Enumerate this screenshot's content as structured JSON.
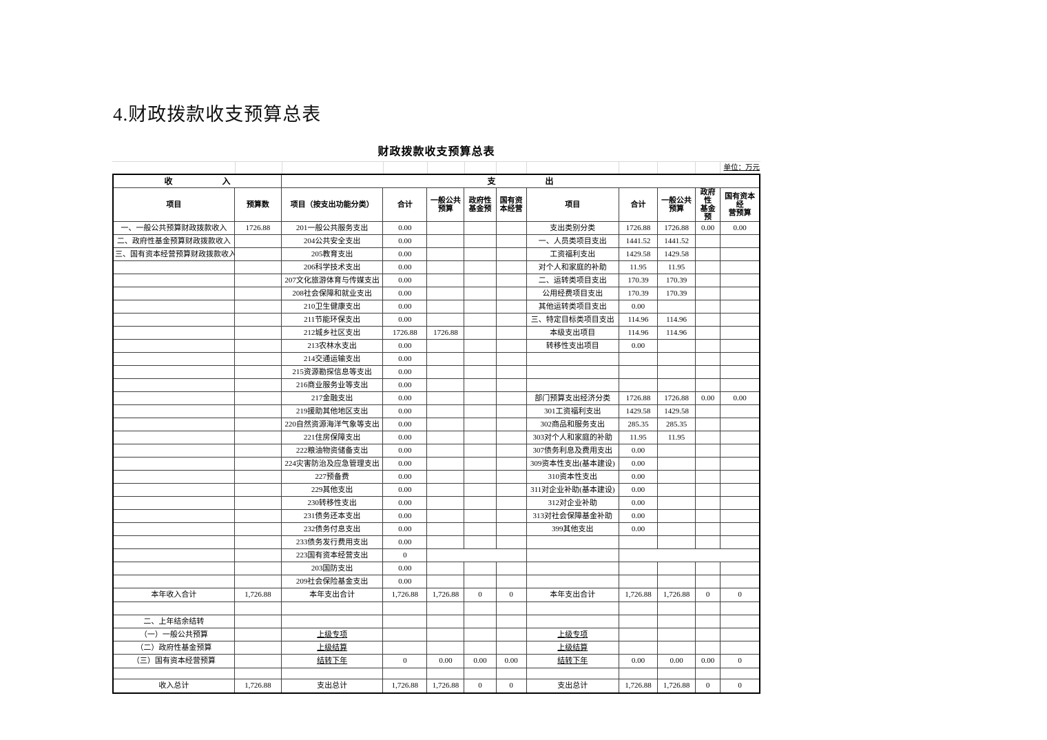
{
  "page": {
    "heading": "4.财政拨款收支预算总表"
  },
  "table": {
    "title": "财政拨款收支预算总表",
    "unit_note": "单位：万元",
    "section_headers": {
      "income": "收　　　　　　入",
      "expenditure": "支　　　　　　出"
    },
    "column_headers": [
      "项目",
      "预算数",
      "项目（按支出功能分类）",
      "合计",
      "一般公共\n预算",
      "政府性\n基金预",
      "国有资\n本经营",
      "项目",
      "合计",
      "一般公共\n预算",
      "政府性\n基金预",
      "国有资本经\n营预算"
    ],
    "rows": [
      [
        "一、一般公共预算财政拨款收入",
        "1726.88",
        "201一般公共服务支出",
        "0.00",
        "",
        "",
        "",
        "支出类别分类",
        "1726.88",
        "1726.88",
        "0.00",
        "0.00"
      ],
      [
        "二、政府性基金预算财政拨款收入",
        "",
        "204公共安全支出",
        "0.00",
        "",
        "",
        "",
        "一、人员类项目支出",
        "1441.52",
        "1441.52",
        "",
        ""
      ],
      [
        "三、国有资本经营预算财政拨款收入",
        "",
        "205教育支出",
        "0.00",
        "",
        "",
        "",
        {
          "t": "工资福利支出",
          "i": 1
        },
        "1429.58",
        "1429.58",
        "",
        ""
      ],
      [
        "",
        "",
        "206科学技术支出",
        "0.00",
        "",
        "",
        "",
        {
          "t": "对个人和家庭的补助",
          "i": 1
        },
        "11.95",
        "11.95",
        "",
        ""
      ],
      [
        "",
        "",
        "207文化旅游体育与传媒支出",
        "0.00",
        "",
        "",
        "",
        "二、运转类项目支出",
        "170.39",
        "170.39",
        "",
        ""
      ],
      [
        "",
        "",
        "208社会保障和就业支出",
        "0.00",
        "",
        "",
        "",
        {
          "t": "公用经费项目支出",
          "i": 1
        },
        "170.39",
        "170.39",
        "",
        ""
      ],
      [
        "",
        "",
        "210卫生健康支出",
        "0.00",
        "",
        "",
        "",
        {
          "t": "其他运转类项目支出",
          "i": 1
        },
        "0.00",
        "",
        "",
        ""
      ],
      [
        "",
        "",
        "211节能环保支出",
        "0.00",
        "",
        "",
        "",
        "三、特定目标类项目支出",
        "114.96",
        "114.96",
        "",
        ""
      ],
      [
        "",
        "",
        "212城乡社区支出",
        "1726.88",
        "1726.88",
        "",
        "",
        {
          "t": "本级支出项目",
          "i": 1
        },
        "114.96",
        "114.96",
        "",
        ""
      ],
      [
        "",
        "",
        "213农林水支出",
        "0.00",
        "",
        "",
        "",
        {
          "t": "转移性支出项目",
          "i": 1
        },
        "0.00",
        "",
        "",
        ""
      ],
      [
        "",
        "",
        "214交通运输支出",
        "0.00",
        "",
        "",
        "",
        "",
        "",
        "",
        "",
        ""
      ],
      [
        "",
        "",
        "215资源勘探信息等支出",
        "0.00",
        "",
        "",
        "",
        "",
        "",
        "",
        "",
        ""
      ],
      [
        "",
        "",
        "216商业服务业等支出",
        "0.00",
        "",
        "",
        "",
        "",
        "",
        "",
        "",
        ""
      ],
      [
        "",
        "",
        "217金融支出",
        "0.00",
        "",
        "",
        "",
        "部门预算支出经济分类",
        "1726.88",
        "1726.88",
        "0.00",
        "0.00"
      ],
      [
        "",
        "",
        "219援助其他地区支出",
        "0.00",
        "",
        "",
        "",
        "301工资福利支出",
        "1429.58",
        "1429.58",
        "",
        ""
      ],
      [
        "",
        "",
        "220自然资源海洋气象等支出",
        "0.00",
        "",
        "",
        "",
        "302商品和服务支出",
        "285.35",
        "285.35",
        "",
        ""
      ],
      [
        "",
        "",
        "221住房保障支出",
        "0.00",
        "",
        "",
        "",
        "303对个人和家庭的补助",
        "11.95",
        "11.95",
        "",
        ""
      ],
      [
        "",
        "",
        "222粮油物资储备支出",
        "0.00",
        "",
        "",
        "",
        "307债务利息及费用支出",
        "0.00",
        "",
        "",
        ""
      ],
      [
        "",
        "",
        "224灾害防治及应急管理支出",
        "0.00",
        "",
        "",
        "",
        "309资本性支出(基本建设)",
        "0.00",
        "",
        "",
        ""
      ],
      [
        "",
        "",
        "227预备费",
        "0.00",
        "",
        "",
        "",
        "310资本性支出",
        "0.00",
        "",
        "",
        ""
      ],
      [
        "",
        "",
        "229其他支出",
        "0.00",
        "",
        "",
        "",
        "311对企业补助(基本建设)",
        "0.00",
        "",
        "",
        ""
      ],
      [
        "",
        "",
        "230转移性支出",
        "0.00",
        "",
        "",
        "",
        "312对企业补助",
        "0.00",
        "",
        "",
        ""
      ],
      [
        "",
        "",
        "231债务还本支出",
        "0.00",
        "",
        "",
        "",
        "313对社会保障基金补助",
        "0.00",
        "",
        "",
        ""
      ],
      [
        "",
        "",
        "232债务付息支出",
        "0.00",
        "",
        "",
        "",
        "399其他支出",
        "0.00",
        "",
        "",
        ""
      ],
      [
        "",
        "",
        "233债务发行费用支出",
        "0.00",
        "",
        "",
        "",
        "",
        "",
        "",
        "",
        ""
      ],
      [
        "",
        "",
        "223国有资本经营支出",
        "0",
        {
          "t": "",
          "span": 3
        },
        "",
        {
          "t": "",
          "span": 4
        }
      ],
      [
        "",
        "",
        "203国防支出",
        "0.00",
        "",
        "",
        "",
        "",
        "",
        "",
        "",
        ""
      ],
      [
        "",
        "",
        "209社会保险基金支出",
        "0.00",
        "",
        "",
        "",
        "",
        "",
        "",
        "",
        ""
      ],
      [
        "本年收入合计",
        {
          "t": "1,726.88",
          "a": "r"
        },
        "本年支出合计",
        {
          "t": "1,726.88",
          "a": "r"
        },
        {
          "t": "1,726.88",
          "a": "r"
        },
        {
          "t": "0",
          "a": "r"
        },
        {
          "t": "0",
          "a": "r"
        },
        "本年支出合计",
        {
          "t": "1,726.88",
          "a": "r"
        },
        {
          "t": "1,726.88",
          "a": "r"
        },
        {
          "t": "0",
          "a": "r"
        },
        {
          "t": "0",
          "a": "r"
        }
      ],
      [
        "",
        "",
        "",
        "",
        "",
        "",
        "",
        "",
        "",
        "",
        "",
        ""
      ],
      [
        "二、上年结余结转",
        "",
        "",
        "",
        "",
        "",
        "",
        "",
        "",
        "",
        "",
        ""
      ],
      [
        {
          "t": "（一）一般公共预算",
          "i": 1
        },
        "",
        {
          "t": "上级专项",
          "u": 1
        },
        "",
        "",
        "",
        "",
        {
          "t": "上级专项",
          "u": 1
        },
        "",
        "",
        "",
        ""
      ],
      [
        {
          "t": "（二）政府性基金预算",
          "i": 1
        },
        "",
        {
          "t": "上级结算",
          "u": 1
        },
        "",
        "",
        "",
        "",
        {
          "t": "上级结算",
          "u": 1
        },
        "",
        "",
        "",
        ""
      ],
      [
        {
          "t": "（三）国有资本经营预算",
          "i": 1
        },
        "",
        {
          "t": "结转下年",
          "u": 1
        },
        {
          "t": "0",
          "a": "r"
        },
        "0.00",
        "0.00",
        "0.00",
        {
          "t": "结转下年",
          "u": 1
        },
        "0.00",
        "0.00",
        "0.00",
        {
          "t": "0",
          "a": "r"
        }
      ],
      [
        "",
        "",
        "",
        "",
        "",
        "",
        "",
        "",
        "",
        "",
        "",
        ""
      ],
      [
        "收入总计",
        {
          "t": "1,726.88",
          "a": "r"
        },
        "支出总计",
        {
          "t": "1,726.88",
          "a": "r"
        },
        {
          "t": "1,726.88",
          "a": "r"
        },
        {
          "t": "0",
          "a": "r"
        },
        {
          "t": "0",
          "a": "r"
        },
        "支出总计",
        {
          "t": "1,726.88",
          "a": "r"
        },
        {
          "t": "1,726.88",
          "a": "r"
        },
        {
          "t": "0",
          "a": "r"
        },
        {
          "t": "0",
          "a": "r"
        }
      ]
    ]
  }
}
